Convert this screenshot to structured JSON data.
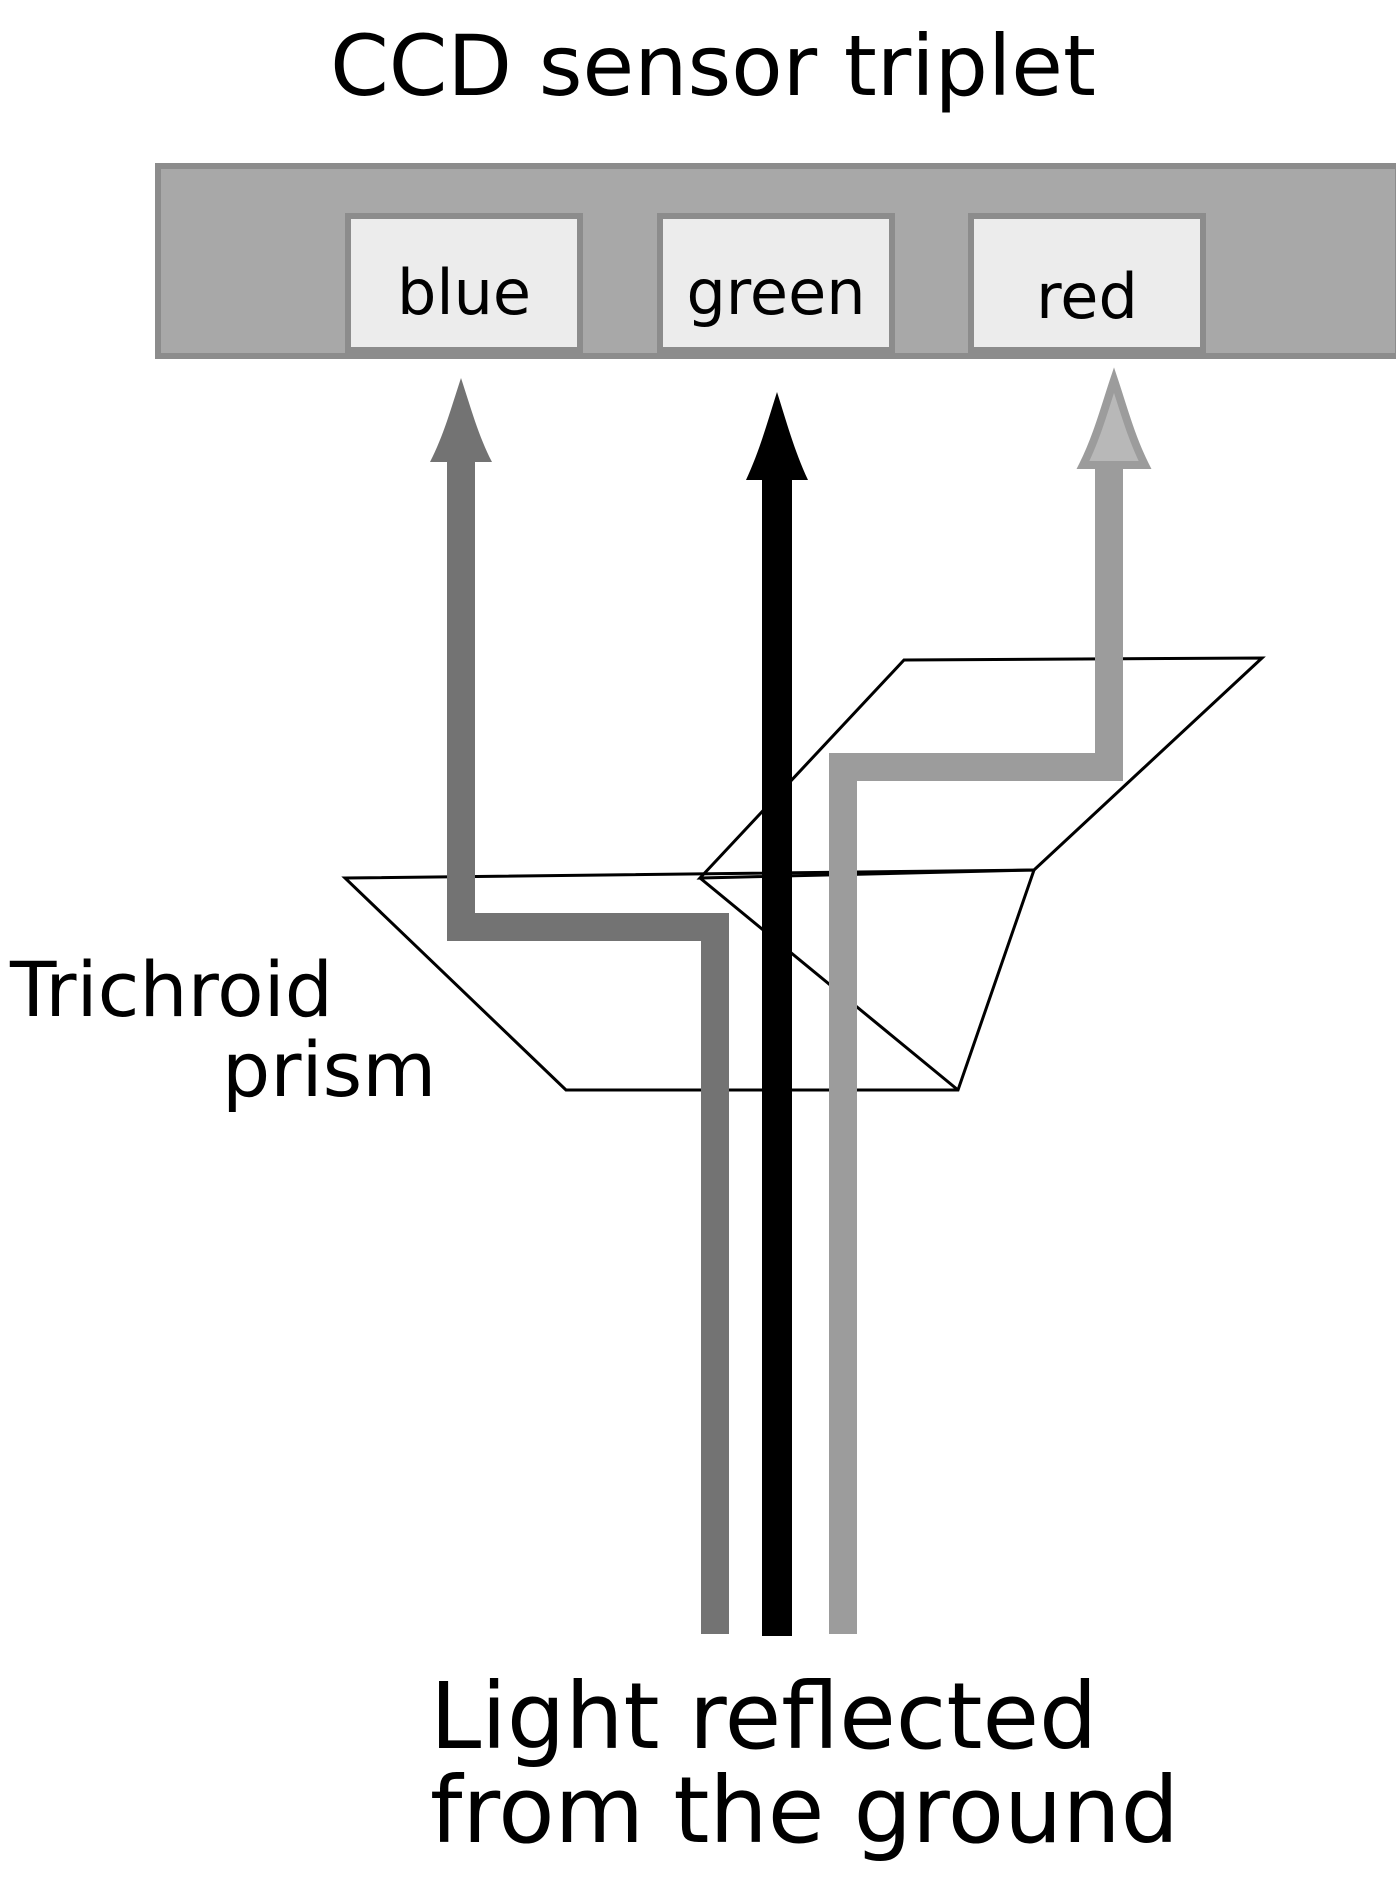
{
  "title": "CCD sensor triplet",
  "sensors": [
    {
      "label": "blue"
    },
    {
      "label": "green"
    },
    {
      "label": "red"
    }
  ],
  "prism": {
    "line1": "Trichroid",
    "line2": "prism"
  },
  "source": {
    "line1": "Light reflected",
    "line2": "from the ground"
  },
  "colors": {
    "sensor_bar": "#a8a8a8",
    "sensor_cell": "#ececec",
    "blue_beam": "#737373",
    "green_beam": "#000000",
    "red_beam": "#9c9c9c",
    "red_arrowhead": "#b8b8b8"
  }
}
